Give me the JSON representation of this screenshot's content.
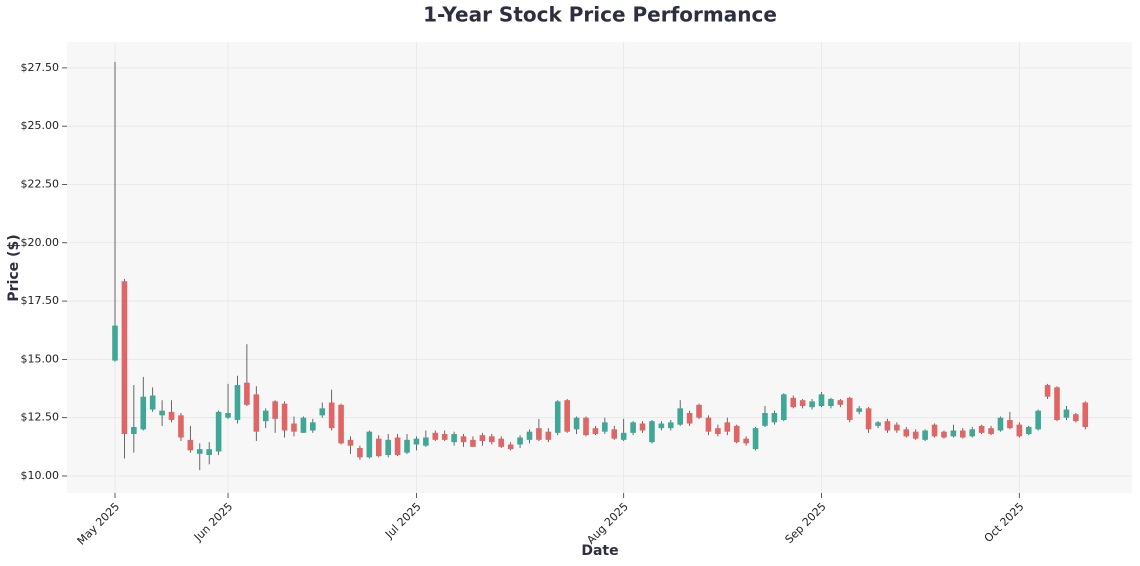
{
  "chart_data": {
    "type": "candlestick",
    "title": "1-Year Stock Price Performance",
    "x_label": "Date",
    "y_label": "Price ($)",
    "up_color": "#3fa796",
    "down_color": "#e06666",
    "grid": true,
    "categories": [
      "May 2025",
      null,
      null,
      null,
      null,
      null,
      null,
      null,
      null,
      null,
      null,
      null,
      "Jun 2025",
      null,
      null,
      null,
      null,
      null,
      null,
      null,
      null,
      null,
      null,
      null,
      null,
      null,
      null,
      null,
      null,
      null,
      null,
      null,
      "Jul 2025",
      null,
      null,
      null,
      null,
      null,
      null,
      null,
      null,
      null,
      null,
      null,
      null,
      null,
      null,
      null,
      null,
      null,
      null,
      null,
      null,
      null,
      "Aug 2025",
      null,
      null,
      null,
      null,
      null,
      null,
      null,
      null,
      null,
      null,
      null,
      null,
      null,
      null,
      null,
      null,
      null,
      null,
      null,
      null,
      "Sep 2025",
      null,
      null,
      null,
      null,
      null,
      null,
      null,
      null,
      null,
      null,
      null,
      null,
      null,
      null,
      null,
      null,
      null,
      null,
      null,
      null,
      "Oct 2025",
      null,
      null,
      null,
      null,
      null,
      null,
      null
    ],
    "open": [
      14.95,
      18.35,
      11.8,
      12.0,
      12.85,
      12.6,
      12.75,
      12.6,
      11.55,
      10.95,
      10.9,
      11.05,
      12.5,
      12.4,
      14.0,
      13.5,
      12.35,
      13.2,
      13.1,
      12.25,
      11.85,
      11.95,
      12.6,
      13.15,
      13.05,
      11.55,
      11.2,
      10.8,
      11.6,
      10.9,
      11.65,
      11.0,
      11.35,
      11.3,
      11.85,
      11.8,
      11.45,
      11.7,
      11.55,
      11.75,
      11.7,
      11.6,
      11.35,
      11.35,
      11.55,
      12.05,
      11.9,
      11.85,
      13.25,
      12.0,
      12.5,
      12.05,
      11.9,
      12.0,
      11.55,
      11.85,
      12.25,
      11.45,
      12.05,
      12.05,
      12.2,
      12.7,
      13.05,
      12.5,
      12.05,
      12.3,
      12.15,
      11.6,
      11.15,
      12.15,
      12.3,
      12.4,
      13.35,
      13.25,
      12.95,
      13.0,
      13.0,
      13.25,
      13.35,
      12.75,
      12.9,
      12.15,
      12.35,
      12.2,
      12.0,
      11.9,
      11.55,
      12.2,
      11.9,
      11.7,
      11.95,
      11.7,
      12.15,
      12.05,
      11.95,
      12.4,
      12.2,
      11.8,
      12.0,
      13.9,
      13.8,
      12.5,
      12.65,
      13.15
    ],
    "high": [
      27.75,
      18.45,
      13.9,
      14.25,
      13.8,
      13.25,
      13.25,
      12.7,
      12.15,
      11.4,
      11.45,
      12.8,
      13.95,
      14.3,
      15.65,
      13.85,
      12.9,
      13.25,
      13.2,
      12.55,
      12.55,
      12.45,
      13.15,
      13.7,
      13.1,
      11.7,
      11.3,
      11.95,
      11.75,
      11.8,
      11.8,
      11.8,
      11.7,
      11.95,
      11.95,
      11.95,
      11.9,
      11.8,
      11.7,
      11.85,
      11.8,
      11.7,
      11.45,
      11.75,
      12.0,
      12.45,
      12.05,
      13.25,
      13.3,
      12.55,
      12.55,
      12.15,
      12.5,
      12.15,
      12.45,
      12.35,
      12.35,
      12.4,
      12.35,
      12.4,
      13.25,
      12.8,
      13.1,
      12.6,
      12.2,
      12.5,
      12.2,
      11.7,
      12.1,
      13.0,
      12.8,
      13.55,
      13.45,
      13.3,
      13.3,
      13.6,
      13.35,
      13.3,
      13.4,
      13.0,
      12.95,
      12.35,
      12.45,
      12.3,
      12.1,
      12.0,
      12.0,
      12.25,
      11.95,
      12.2,
      12.05,
      12.1,
      12.2,
      12.15,
      12.55,
      12.75,
      12.3,
      12.15,
      12.85,
      13.95,
      13.85,
      13.0,
      12.7,
      13.2
    ],
    "low": [
      14.9,
      10.75,
      11.0,
      11.95,
      12.75,
      12.15,
      12.3,
      11.5,
      11.0,
      10.25,
      10.5,
      10.9,
      12.45,
      12.25,
      13.0,
      11.5,
      12.05,
      11.85,
      11.65,
      11.7,
      11.85,
      11.85,
      12.5,
      11.95,
      11.35,
      10.95,
      10.7,
      10.75,
      10.8,
      10.8,
      10.85,
      10.95,
      11.1,
      11.25,
      11.5,
      11.5,
      11.3,
      11.25,
      11.25,
      11.3,
      11.35,
      11.2,
      11.1,
      11.2,
      11.4,
      11.5,
      11.45,
      11.75,
      11.85,
      11.8,
      11.7,
      11.75,
      11.8,
      11.55,
      11.5,
      11.75,
      11.85,
      11.4,
      11.95,
      11.95,
      12.15,
      12.15,
      12.45,
      11.75,
      11.7,
      11.75,
      11.4,
      11.3,
      11.1,
      12.1,
      12.2,
      12.35,
      12.9,
      12.9,
      12.85,
      12.95,
      12.9,
      12.95,
      12.3,
      12.65,
      11.85,
      12.05,
      11.85,
      11.85,
      11.65,
      11.55,
      11.5,
      11.65,
      11.6,
      11.65,
      11.6,
      11.65,
      11.8,
      11.75,
      11.9,
      12.0,
      11.65,
      11.75,
      11.95,
      13.3,
      12.35,
      12.4,
      12.3,
      12.0
    ],
    "close": [
      16.45,
      11.8,
      12.1,
      13.4,
      13.45,
      12.8,
      12.4,
      11.65,
      11.1,
      11.15,
      11.15,
      12.75,
      12.7,
      13.9,
      13.05,
      11.9,
      12.8,
      12.45,
      11.95,
      11.9,
      12.5,
      12.3,
      12.9,
      12.05,
      11.4,
      11.3,
      10.8,
      11.9,
      10.85,
      11.55,
      10.9,
      11.55,
      11.6,
      11.65,
      11.55,
      11.55,
      11.8,
      11.45,
      11.25,
      11.5,
      11.45,
      11.25,
      11.15,
      11.65,
      11.9,
      11.55,
      11.55,
      13.2,
      11.9,
      12.5,
      11.75,
      11.8,
      12.3,
      11.6,
      11.85,
      12.3,
      11.95,
      12.35,
      12.25,
      12.3,
      12.9,
      12.25,
      12.5,
      11.9,
      11.8,
      11.9,
      11.45,
      11.4,
      12.05,
      12.7,
      12.7,
      13.5,
      12.95,
      13.0,
      13.2,
      13.5,
      13.3,
      13.05,
      12.4,
      12.9,
      12.0,
      12.3,
      11.95,
      11.95,
      11.7,
      11.6,
      11.95,
      11.7,
      11.65,
      11.95,
      11.65,
      12.0,
      11.85,
      11.8,
      12.5,
      12.05,
      11.7,
      12.1,
      12.8,
      13.4,
      12.4,
      12.85,
      12.35,
      12.1
    ],
    "ylim": [
      9.27,
      28.61
    ],
    "yticks": [
      {
        "value": 10,
        "label": "$10.00"
      },
      {
        "value": 12.5,
        "label": "$12.50"
      },
      {
        "value": 15,
        "label": "$15.00"
      },
      {
        "value": 17.5,
        "label": "$17.50"
      },
      {
        "value": 20,
        "label": "$20.00"
      },
      {
        "value": 22.5,
        "label": "$22.50"
      },
      {
        "value": 25,
        "label": "$25.00"
      },
      {
        "value": 27.5,
        "label": "$27.50"
      }
    ]
  }
}
